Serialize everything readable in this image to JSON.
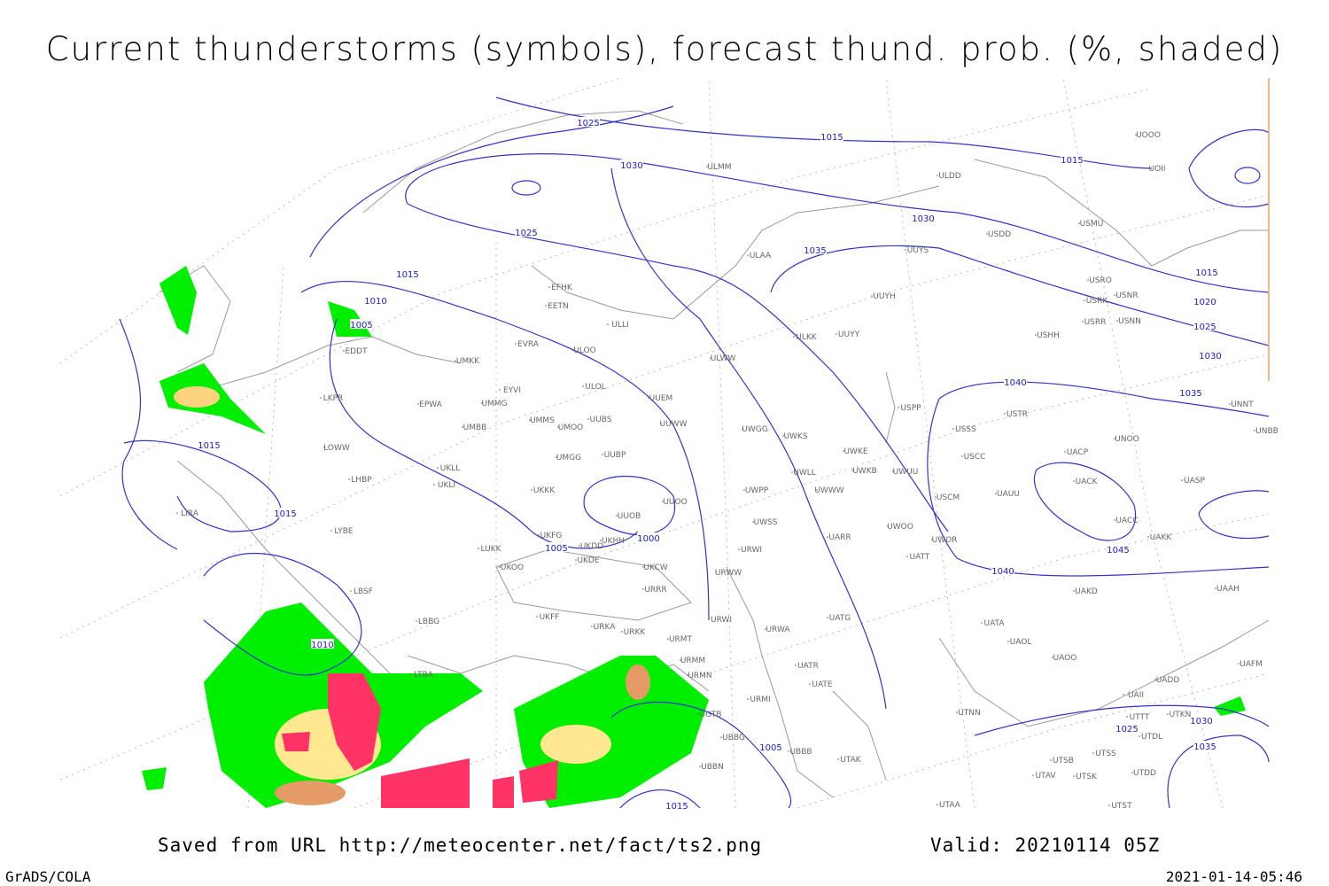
{
  "title": "Current thunderstorms (symbols), forecast thund. prob. (%, shaded)",
  "footer": {
    "saved": "Saved from URL http://meteocenter.net/fact/ts2.png",
    "valid": "Valid: 20210114 05Z",
    "software": "GrADS/COLA",
    "timestamp": "2021-01-14-05:46"
  },
  "isobar_labels": [
    1025,
    1015,
    1015,
    1030,
    1030,
    1025,
    1035,
    1015,
    1015,
    1020,
    1010,
    1005,
    1025,
    1030,
    1040,
    1035,
    1015,
    1015,
    1000,
    1005,
    1045,
    1040,
    1010,
    1025,
    1030,
    1005,
    1035,
    1015
  ],
  "stations": [
    "ULMM",
    "ULDD",
    "USDD",
    "USMU",
    "UOOO",
    "UOII",
    "ULAA",
    "UUYS",
    "USRO",
    "USNR",
    "USRK",
    "USRR",
    "USNN",
    "USHH",
    "UUYH",
    "ULKK",
    "UUYY",
    "EFHK",
    "EETN",
    "ULLI",
    "EVRA",
    "ULOO",
    "UMKK",
    "ULWW",
    "EYVI",
    "ULOL",
    "UUEM",
    "EPWA",
    "UMMG",
    "UMMS",
    "UMOO",
    "UUBS",
    "UUWW",
    "UMBB",
    "UWGG",
    "UWKS",
    "USPP",
    "USSS",
    "USTR",
    "UNOO",
    "UNNT",
    "UNBB",
    "EDDT",
    "LKPR",
    "LOWW",
    "LHBP",
    "UKLL",
    "UKLI",
    "UMGG",
    "UUBP",
    "UWKE",
    "UWKB",
    "UWUU",
    "USCC",
    "UACP",
    "UACK",
    "UASP",
    "UWLL",
    "UWWW",
    "UWPP",
    "UKKK",
    "UUOO",
    "UUOB",
    "UAUU",
    "USCM",
    "UACC",
    "UAKK",
    "LIRA",
    "LYBE",
    "LUKK",
    "UKFG",
    "UKDD",
    "UKHH",
    "UKDE",
    "UWSS",
    "UWOO",
    "UWOR",
    "UARR",
    "URWI",
    "URWW",
    "UATT",
    "UKCW",
    "UKOO",
    "LBSF",
    "URRR",
    "UAKD",
    "UAAH",
    "UKFF",
    "LBBG",
    "URKA",
    "URKK",
    "URWI",
    "URWA",
    "UATG",
    "UATA",
    "UAOL",
    "UAOO",
    "URMT",
    "URMM",
    "URMN",
    "UATR",
    "UATE",
    "LTBA",
    "UADD",
    "UAFM",
    "UAII",
    "URMI",
    "UTTT",
    "UTKN",
    "UTDL",
    "UTNN",
    "UBBB",
    "UGTB",
    "UBBG",
    "UBBN",
    "UTAK",
    "UTSB",
    "UTSS",
    "UTAV",
    "UTSK",
    "UTDD",
    "UTAA",
    "UTST"
  ]
}
